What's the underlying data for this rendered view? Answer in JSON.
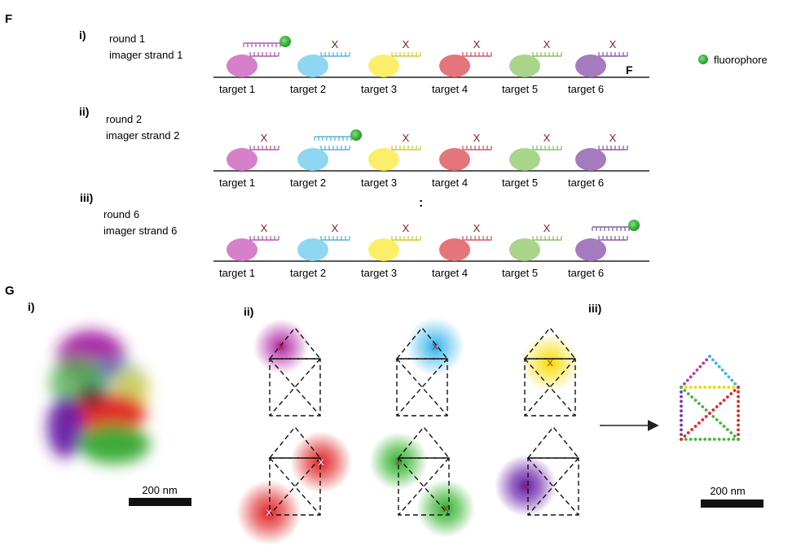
{
  "panel_f": {
    "label": "F",
    "rounds": [
      {
        "numeral": "i)",
        "line1": "round 1",
        "line2": "imager strand 1",
        "active": 0
      },
      {
        "numeral": "ii)",
        "line1": "round 2",
        "line2": "imager strand 2",
        "active": 1
      },
      {
        "numeral": "iii)",
        "line1": "round 6",
        "line2": "imager strand 6",
        "active": 5
      }
    ],
    "targets": [
      "target 1",
      "target 2",
      "target 3",
      "target 4",
      "target 5",
      "target 6"
    ],
    "target_colors": [
      "#d67fcb",
      "#8fd6f2",
      "#fbef6a",
      "#e4757a",
      "#a9d58a",
      "#a47cbd"
    ],
    "strand_colors": [
      "#b45cb2",
      "#5cb3da",
      "#d5c93a",
      "#d45c66",
      "#86c168",
      "#8a5eae"
    ],
    "mismatch_mark": "X",
    "surface_label": "F",
    "ellipsis": ":",
    "legend": {
      "label": "fluorophore",
      "color": "#3fae3f"
    }
  },
  "panel_g": {
    "label": "G",
    "sub_i": "i)",
    "sub_ii": "ii)",
    "sub_iii": "iii)",
    "scale_bar_left": "200 nm",
    "scale_bar_right": "200 nm",
    "spot_mark": "X",
    "arrow": "right-arrow",
    "spot_colors": [
      "#b43ca8",
      "#3fb5e8",
      "#f5e21a",
      "#e03434",
      "#49b83e",
      "#7b35b0"
    ]
  }
}
